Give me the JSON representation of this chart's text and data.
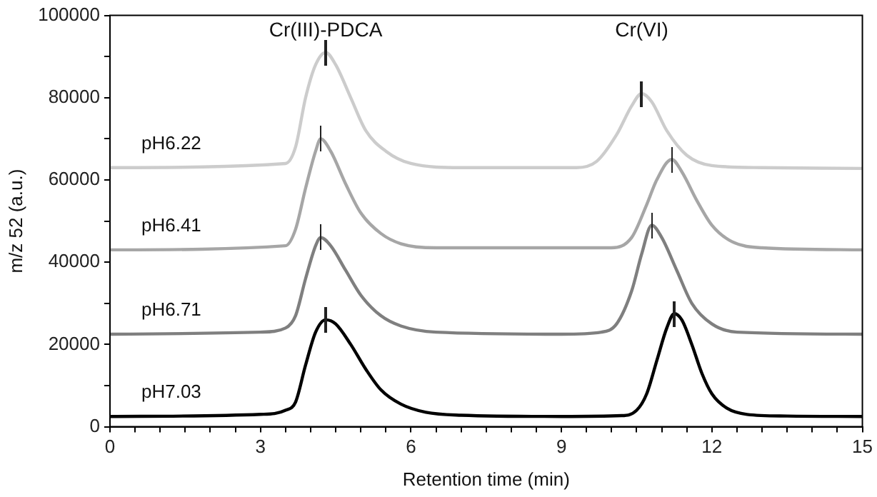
{
  "chart_data": {
    "type": "line",
    "xlabel": "Retention time (min)",
    "ylabel": "m/z 52 (a.u.)",
    "annotations": [
      "Cr(III)-PDCA",
      "Cr(VI)"
    ],
    "xlim": [
      0,
      15
    ],
    "xticks": [
      0,
      {
        "value": 0.5,
        "label": null
      },
      {
        "value": 1,
        "label": null
      },
      {
        "value": 1.5,
        "label": null
      },
      {
        "value": 2,
        "label": null
      },
      {
        "value": 2.5,
        "label": null
      },
      3,
      {
        "value": 3.5,
        "label": null
      },
      {
        "value": 4,
        "label": null
      },
      {
        "value": 4.5,
        "label": null
      },
      {
        "value": 5,
        "label": null
      },
      {
        "value": 5.5,
        "label": null
      },
      6,
      {
        "value": 6.5,
        "label": null
      },
      {
        "value": 7,
        "label": null
      },
      {
        "value": 7.5,
        "label": null
      },
      {
        "value": 8,
        "label": null
      },
      {
        "value": 8.5,
        "label": null
      },
      9,
      {
        "value": 9.5,
        "label": null
      },
      {
        "value": 10,
        "label": null
      },
      {
        "value": 10.5,
        "label": null
      },
      {
        "value": 11,
        "label": null
      },
      {
        "value": 11.5,
        "label": null
      },
      12,
      {
        "value": 12.5,
        "label": null
      },
      {
        "value": 13,
        "label": null
      },
      {
        "value": 13.5,
        "label": null
      },
      {
        "value": 14,
        "label": null
      },
      {
        "value": 14.5,
        "label": null
      },
      15
    ],
    "ylim": [
      0,
      100000
    ],
    "yticks": [
      0,
      {
        "value": 10000,
        "label": null
      },
      20000,
      {
        "value": 30000,
        "label": null
      },
      40000,
      {
        "value": 50000,
        "label": null
      },
      60000,
      {
        "value": 70000,
        "label": null
      },
      80000,
      {
        "value": 90000,
        "label": null
      },
      100000
    ],
    "grid": false,
    "legend": false,
    "marker": "none",
    "line_style": "solid",
    "series": [
      {
        "name": "pH6.22",
        "color": "#cccccc",
        "x": [
          0,
          3.5,
          3.7,
          3.9,
          4.1,
          4.3,
          4.5,
          4.8,
          5.1,
          5.5,
          6,
          7,
          9.3,
          9.7,
          10.1,
          10.4,
          10.6,
          10.8,
          11.1,
          11.5,
          12,
          13,
          15
        ],
        "values": [
          63000,
          64000,
          68000,
          80000,
          88000,
          91000,
          88000,
          80000,
          72000,
          67000,
          64000,
          63000,
          63000,
          64500,
          71000,
          78000,
          81000,
          79000,
          72000,
          66000,
          63500,
          63000,
          62800
        ]
      },
      {
        "name": "pH6.41",
        "color": "#a6a6a6",
        "x": [
          0,
          3.5,
          3.7,
          3.9,
          4.1,
          4.2,
          4.4,
          4.7,
          5,
          5.4,
          5.8,
          6.5,
          10,
          10.4,
          10.7,
          10.9,
          11.2,
          11.4,
          11.7,
          12,
          12.4,
          13,
          15
        ],
        "values": [
          43000,
          44000,
          48000,
          58000,
          67000,
          70000,
          67000,
          59000,
          52000,
          47000,
          44500,
          43500,
          43500,
          46000,
          54000,
          60000,
          65000,
          62000,
          55000,
          49000,
          45000,
          43500,
          43000
        ]
      },
      {
        "name": "pH6.71",
        "color": "#7f7f7f",
        "x": [
          0,
          3,
          3.5,
          3.7,
          3.9,
          4.1,
          4.2,
          4.4,
          4.7,
          5,
          5.4,
          5.8,
          6.5,
          9,
          9.8,
          10.1,
          10.4,
          10.6,
          10.8,
          11,
          11.3,
          11.6,
          12,
          12.5,
          15
        ],
        "values": [
          22500,
          23000,
          24000,
          27000,
          36000,
          44000,
          46000,
          44000,
          38000,
          32000,
          27000,
          24500,
          23000,
          22500,
          23000,
          25000,
          33000,
          42000,
          49000,
          46000,
          38000,
          30000,
          25000,
          23000,
          22500
        ]
      },
      {
        "name": "pH7.03",
        "color": "#000000",
        "x": [
          0,
          3,
          3.5,
          3.7,
          3.9,
          4.1,
          4.3,
          4.5,
          4.8,
          5.1,
          5.4,
          5.8,
          6.3,
          7,
          9,
          10.2,
          10.5,
          10.7,
          10.9,
          11.1,
          11.25,
          11.4,
          11.6,
          11.8,
          12,
          12.3,
          12.7,
          13.5,
          15
        ],
        "values": [
          2500,
          3000,
          4000,
          6000,
          15000,
          23000,
          26000,
          25000,
          20000,
          14000,
          9000,
          5500,
          3500,
          2800,
          2500,
          2700,
          4000,
          8000,
          16000,
          24000,
          27500,
          26000,
          20000,
          13000,
          8000,
          4500,
          3000,
          2600,
          2500
        ]
      }
    ]
  }
}
